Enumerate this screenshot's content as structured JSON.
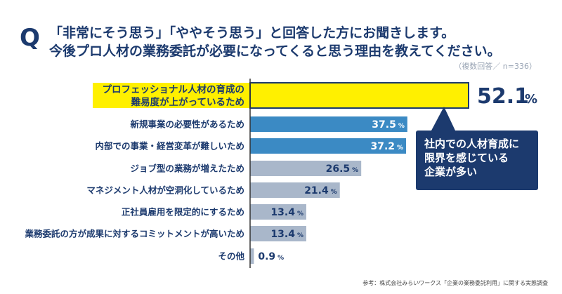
{
  "question": {
    "mark": "Q",
    "line1": "「非常にそう思う」「ややそう思う」と回答した方にお聞きします。",
    "line2": "今後プロ人材の業務委託が必要になってくると思う理由を教えてください。",
    "meta": "（複数回答／ n=336）"
  },
  "chart_data": {
    "type": "bar",
    "orientation": "horizontal",
    "categories": [
      [
        "プロフェッショナル人材の育成の",
        "難易度が上がっているため"
      ],
      [
        "新規事業の必要性があるため"
      ],
      [
        "内部での事業・経営変革が難しいため"
      ],
      [
        "ジョブ型の業務が増えたため"
      ],
      [
        "マネジメント人材が空洞化しているため"
      ],
      [
        "正社員雇用を限定的にするため"
      ],
      [
        "業務委託の方が成果に対するコミットメントが高いため"
      ],
      [
        "その他"
      ]
    ],
    "values": [
      52.1,
      37.5,
      37.2,
      26.5,
      21.4,
      13.4,
      13.4,
      0.9
    ],
    "value_labels": [
      "52.1",
      "37.5",
      "37.2",
      "26.5",
      "21.4",
      "13.4",
      "13.4",
      "0.9"
    ],
    "unit": "%",
    "colors": {
      "highlight": "#fff000",
      "highlight_border": "#1c3a6e",
      "strong": "#3b8ac4",
      "weak": "#a9b7ca",
      "text": "#1c3a6e"
    },
    "callout": {
      "lines": [
        "社内での人材育成に",
        "限界を感じている",
        "企業が多い"
      ],
      "background": "#1c3a6e"
    }
  },
  "source": "参考：株式会社みらいワークス「企業の業務委託利用」に関する実態調査"
}
